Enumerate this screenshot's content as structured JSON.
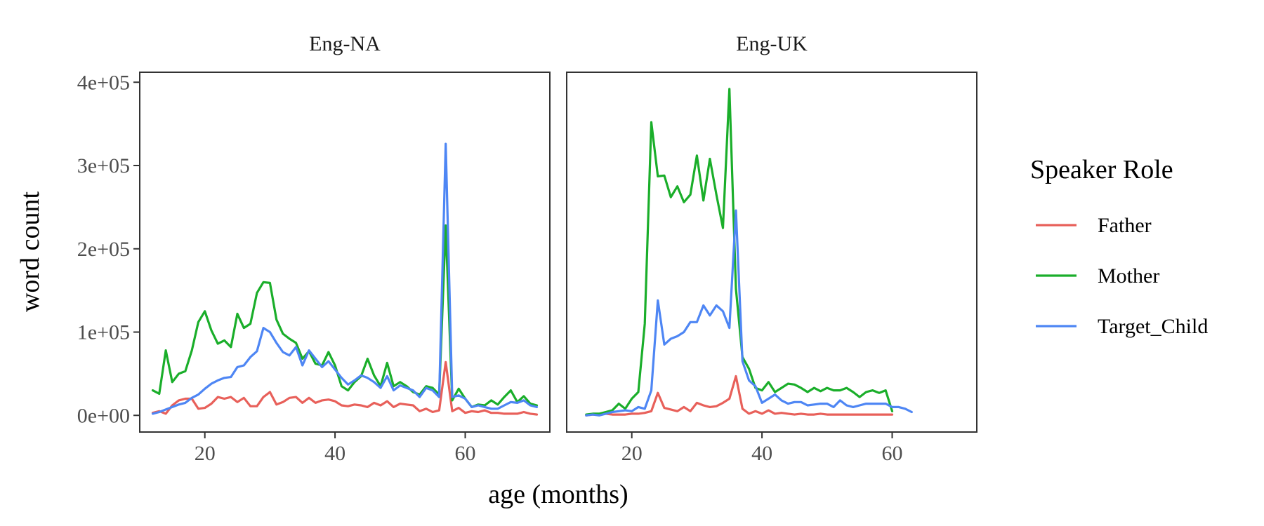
{
  "chart_data": {
    "type": "line",
    "xlabel": "age (months)",
    "ylabel": "word count",
    "xlim": [
      10,
      73
    ],
    "ylim": [
      -20000,
      412000
    ],
    "x_ticks": [
      20,
      40,
      60
    ],
    "x_tick_labels": [
      "20",
      "40",
      "60"
    ],
    "y_ticks": [
      0,
      100000,
      200000,
      300000,
      400000
    ],
    "y_tick_labels": [
      "0e+00",
      "1e+05",
      "2e+05",
      "3e+05",
      "4e+05"
    ],
    "grid": false,
    "legend": {
      "title": "Speaker Role",
      "position": "right",
      "entries": [
        "Father",
        "Mother",
        "Target_Child"
      ]
    },
    "colors": {
      "Father": "#E8605A",
      "Mother": "#1AAE2A",
      "Target_Child": "#4E86F4"
    },
    "panels": [
      {
        "strip_label": "Eng-NA",
        "series": [
          {
            "name": "Father",
            "x": [
              12,
              13,
              14,
              15,
              16,
              17,
              18,
              19,
              20,
              21,
              22,
              23,
              24,
              25,
              26,
              27,
              28,
              29,
              30,
              31,
              32,
              33,
              34,
              35,
              36,
              37,
              38,
              39,
              40,
              41,
              42,
              43,
              44,
              45,
              46,
              47,
              48,
              49,
              50,
              51,
              52,
              53,
              54,
              55,
              56,
              57,
              58,
              59,
              60,
              61,
              62,
              63,
              64,
              65,
              66,
              67,
              68,
              69,
              70,
              71
            ],
            "y": [
              3000,
              5000,
              2000,
              12000,
              18000,
              20000,
              20000,
              8000,
              9000,
              14000,
              22000,
              20000,
              22000,
              16000,
              21000,
              11000,
              11000,
              22000,
              28000,
              13000,
              16000,
              21000,
              22000,
              15000,
              21000,
              15000,
              18000,
              19000,
              17000,
              12000,
              11000,
              13000,
              12000,
              10000,
              15000,
              12000,
              17000,
              10000,
              14000,
              13000,
              12000,
              5000,
              8000,
              4000,
              6000,
              64000,
              5000,
              9000,
              3000,
              5000,
              4000,
              6000,
              3000,
              3000,
              2000,
              2000,
              2000,
              4000,
              2000,
              1000
            ]
          },
          {
            "name": "Mother",
            "x": [
              12,
              13,
              14,
              15,
              16,
              17,
              18,
              19,
              20,
              21,
              22,
              23,
              24,
              25,
              26,
              27,
              28,
              29,
              30,
              31,
              32,
              33,
              34,
              35,
              36,
              37,
              38,
              39,
              40,
              41,
              42,
              43,
              44,
              45,
              46,
              47,
              48,
              49,
              50,
              51,
              52,
              53,
              54,
              55,
              56,
              57,
              58,
              59,
              60,
              61,
              62,
              63,
              64,
              65,
              66,
              67,
              68,
              69,
              70,
              71
            ],
            "y": [
              30000,
              26000,
              78000,
              40000,
              50000,
              53000,
              78000,
              112000,
              125000,
              102000,
              86000,
              90000,
              82000,
              122000,
              105000,
              110000,
              147000,
              160000,
              159000,
              115000,
              98000,
              92000,
              87000,
              68000,
              77000,
              62000,
              60000,
              76000,
              60000,
              35000,
              30000,
              40000,
              47000,
              68000,
              48000,
              35000,
              63000,
              35000,
              40000,
              35000,
              28000,
              25000,
              35000,
              33000,
              25000,
              228000,
              18000,
              32000,
              20000,
              10000,
              13000,
              12000,
              18000,
              13000,
              22000,
              30000,
              16000,
              23000,
              14000,
              12000
            ]
          },
          {
            "name": "Target_Child",
            "x": [
              12,
              13,
              14,
              15,
              16,
              17,
              18,
              19,
              20,
              21,
              22,
              23,
              24,
              25,
              26,
              27,
              28,
              29,
              30,
              31,
              32,
              33,
              34,
              35,
              36,
              37,
              38,
              39,
              40,
              41,
              42,
              43,
              44,
              45,
              46,
              47,
              48,
              49,
              50,
              51,
              52,
              53,
              54,
              55,
              56,
              57,
              58,
              59,
              60,
              61,
              62,
              63,
              64,
              65,
              66,
              67,
              68,
              69,
              70,
              71
            ],
            "y": [
              2000,
              4000,
              7000,
              10000,
              13000,
              15000,
              21000,
              25000,
              32000,
              38000,
              42000,
              45000,
              46000,
              58000,
              60000,
              70000,
              77000,
              105000,
              100000,
              87000,
              76000,
              72000,
              82000,
              60000,
              78000,
              68000,
              58000,
              65000,
              55000,
              45000,
              37000,
              42000,
              48000,
              45000,
              40000,
              33000,
              47000,
              30000,
              36000,
              33000,
              30000,
              22000,
              33000,
              30000,
              22000,
              326000,
              22000,
              24000,
              20000,
              10000,
              12000,
              10000,
              8000,
              8000,
              12000,
              16000,
              15000,
              18000,
              12000,
              10000
            ]
          }
        ]
      },
      {
        "strip_label": "Eng-UK",
        "series": [
          {
            "name": "Father",
            "x": [
              13,
              14,
              15,
              16,
              17,
              18,
              19,
              20,
              21,
              22,
              23,
              24,
              25,
              26,
              27,
              28,
              29,
              30,
              31,
              32,
              33,
              34,
              35,
              36,
              37,
              38,
              39,
              40,
              41,
              42,
              43,
              44,
              45,
              46,
              47,
              48,
              49,
              50,
              51,
              52,
              53,
              54,
              55,
              56,
              57,
              58,
              59,
              60
            ],
            "y": [
              0,
              1000,
              1000,
              2000,
              1000,
              1000,
              1000,
              2000,
              2000,
              3000,
              5000,
              27000,
              9000,
              7000,
              5000,
              10000,
              5000,
              15000,
              12000,
              10000,
              11000,
              15000,
              20000,
              47000,
              8000,
              2000,
              5000,
              2000,
              6000,
              2000,
              3000,
              2000,
              1000,
              2000,
              1000,
              1000,
              2000,
              1000,
              1000,
              1000,
              1000,
              1000,
              1000,
              1000,
              1000,
              1000,
              1000,
              1000
            ]
          },
          {
            "name": "Mother",
            "x": [
              13,
              14,
              15,
              16,
              17,
              18,
              19,
              20,
              21,
              22,
              23,
              24,
              25,
              26,
              27,
              28,
              29,
              30,
              31,
              32,
              33,
              34,
              35,
              36,
              37,
              38,
              39,
              40,
              41,
              42,
              43,
              44,
              45,
              46,
              47,
              48,
              49,
              50,
              51,
              52,
              53,
              54,
              55,
              56,
              57,
              58,
              59,
              60
            ],
            "y": [
              1000,
              2000,
              2000,
              4000,
              6000,
              14000,
              8000,
              20000,
              28000,
              110000,
              352000,
              287000,
              288000,
              262000,
              275000,
              256000,
              265000,
              312000,
              258000,
              308000,
              265000,
              225000,
              392000,
              152000,
              70000,
              56000,
              33000,
              30000,
              40000,
              28000,
              33000,
              38000,
              37000,
              33000,
              28000,
              33000,
              29000,
              33000,
              30000,
              30000,
              33000,
              28000,
              22000,
              28000,
              30000,
              27000,
              30000,
              5000
            ]
          },
          {
            "name": "Target_Child",
            "x": [
              13,
              14,
              15,
              16,
              17,
              18,
              19,
              20,
              21,
              22,
              23,
              24,
              25,
              26,
              27,
              28,
              29,
              30,
              31,
              32,
              33,
              34,
              35,
              36,
              37,
              38,
              39,
              40,
              41,
              42,
              43,
              44,
              45,
              46,
              47,
              48,
              49,
              50,
              51,
              52,
              53,
              54,
              55,
              56,
              57,
              58,
              59,
              60,
              61,
              62,
              63
            ],
            "y": [
              0,
              1000,
              0,
              2000,
              4000,
              5000,
              6000,
              5000,
              10000,
              8000,
              30000,
              138000,
              85000,
              92000,
              95000,
              100000,
              112000,
              112000,
              132000,
              120000,
              132000,
              125000,
              105000,
              246000,
              65000,
              42000,
              35000,
              15000,
              20000,
              25000,
              18000,
              14000,
              16000,
              16000,
              12000,
              13000,
              14000,
              14000,
              10000,
              18000,
              12000,
              10000,
              12000,
              14000,
              14000,
              14000,
              14000,
              10000,
              10000,
              8000,
              4000
            ]
          }
        ]
      }
    ]
  }
}
